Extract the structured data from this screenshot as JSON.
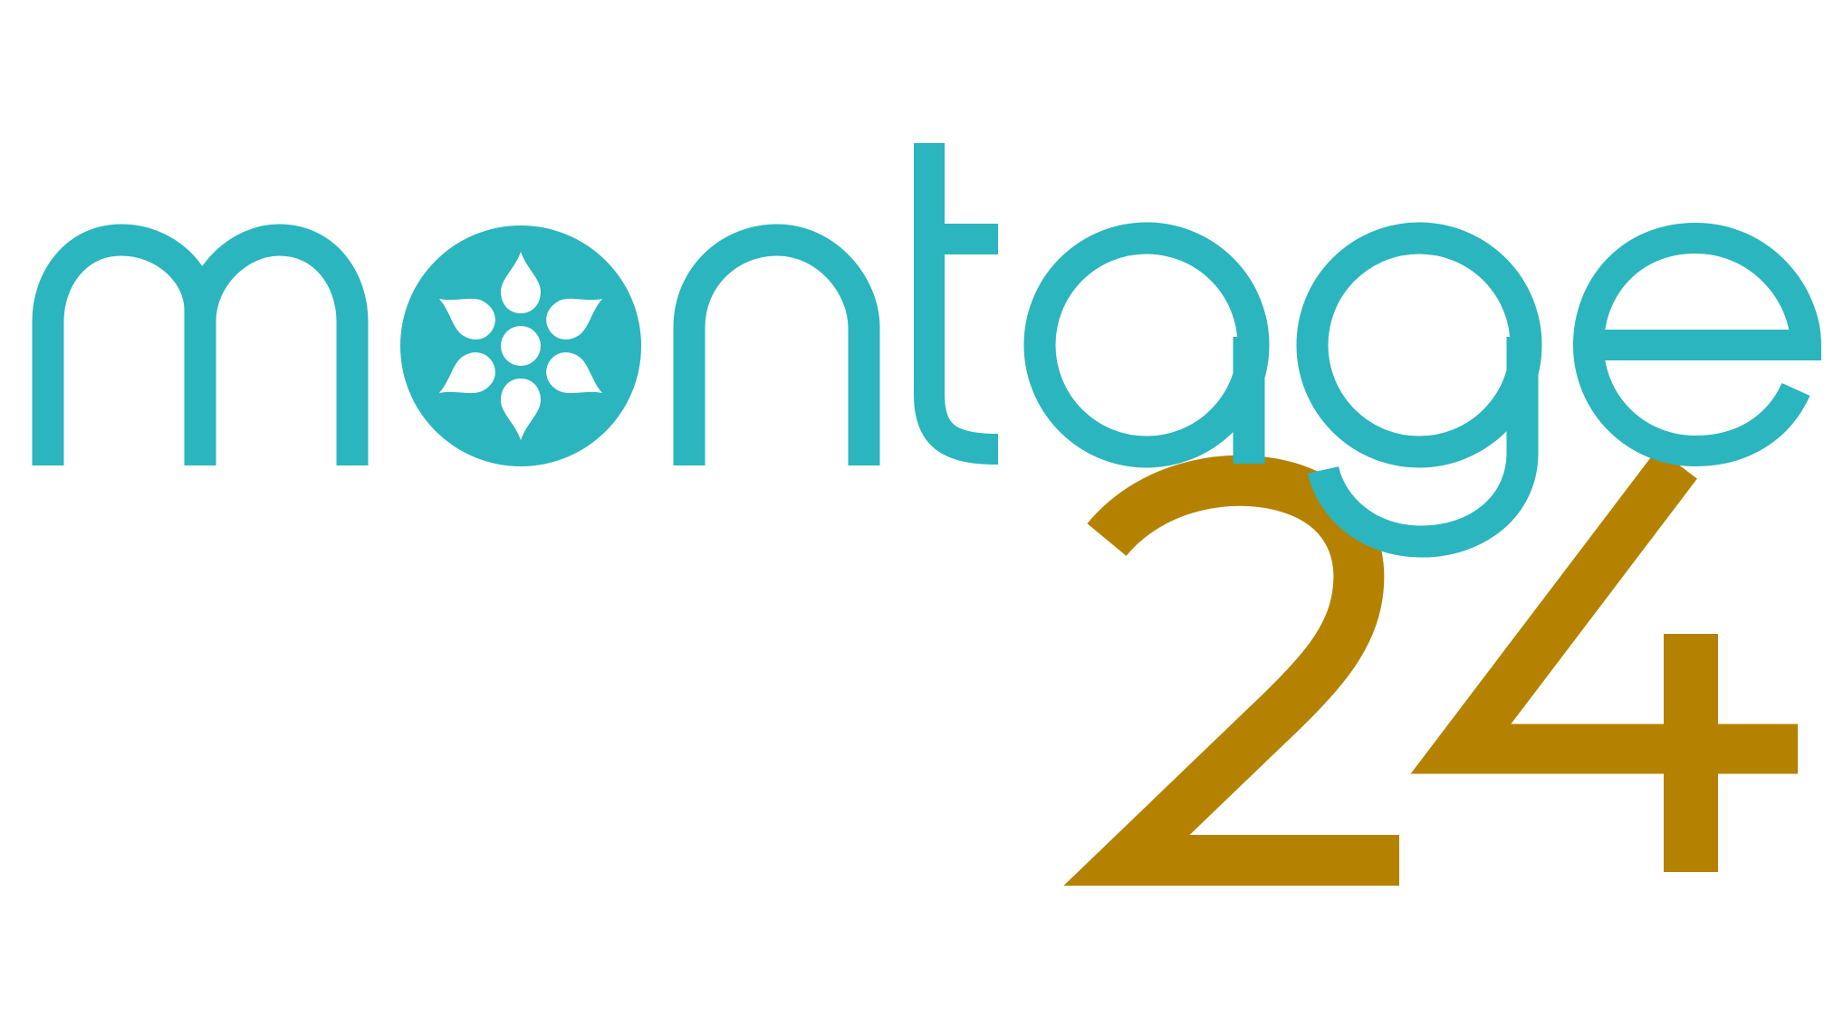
{
  "logo": {
    "wordmark": "montage",
    "number": "24",
    "colors": {
      "wordmark": "#2bb5bf",
      "number": "#b48200",
      "petals": "#ffffff",
      "background": "#ffffff"
    },
    "icons": [
      "film-reel-icon"
    ]
  }
}
